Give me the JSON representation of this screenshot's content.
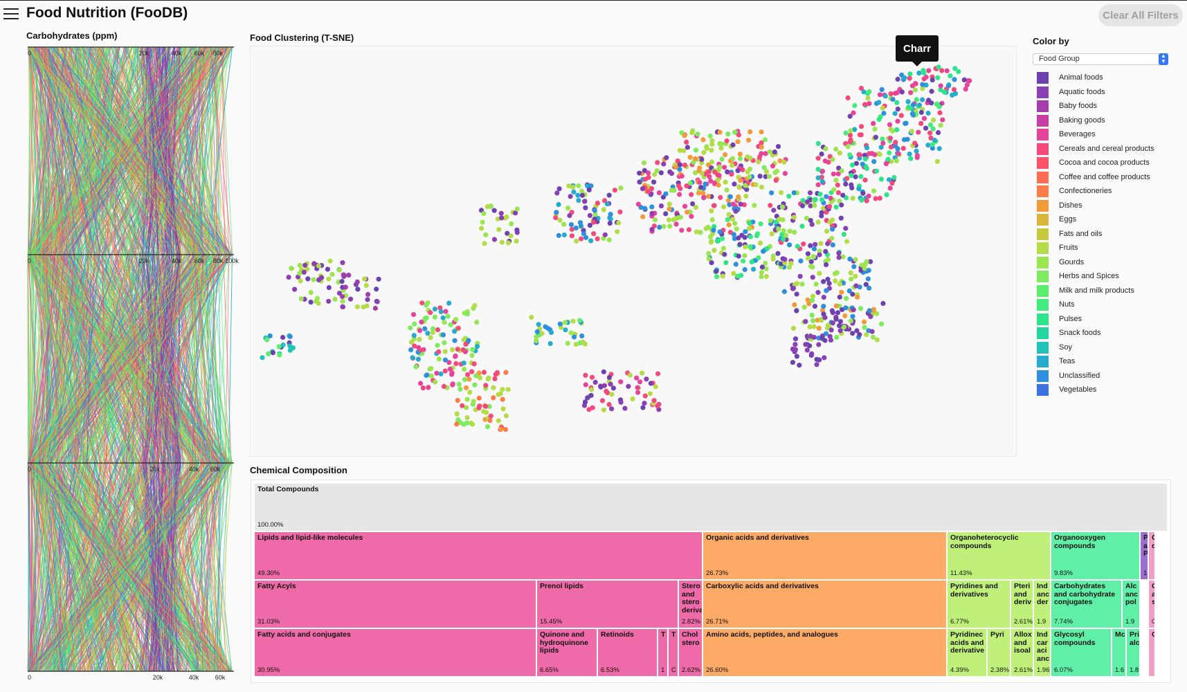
{
  "app": {
    "title": "Food Nutrition (FooDB)",
    "clear_label": "Clear All Filters"
  },
  "parallel": {
    "title": "Carbohydrates (ppm)",
    "axes": [
      {
        "ticks": [
          "0",
          "20k",
          "40k",
          "60k",
          "80k"
        ]
      },
      {
        "ticks": [
          "0",
          "20k",
          "40k",
          "60k",
          "80k",
          "100k"
        ]
      },
      {
        "ticks": [
          "0",
          "20k",
          "40k",
          "60k"
        ]
      },
      {
        "ticks": [
          "0",
          "20k",
          "40k",
          "60k"
        ]
      }
    ]
  },
  "tsne": {
    "title": "Food Clustering (T-SNE)",
    "tooltip": "Charr"
  },
  "colorby": {
    "label": "Color by",
    "selected": "Food Group",
    "groups": [
      {
        "name": "Animal foods",
        "color": "#6e41b1"
      },
      {
        "name": "Aquatic foods",
        "color": "#8a3fb2"
      },
      {
        "name": "Baby foods",
        "color": "#a63dac"
      },
      {
        "name": "Baking goods",
        "color": "#c73fa5"
      },
      {
        "name": "Beverages",
        "color": "#e6439a"
      },
      {
        "name": "Cereals and cereal products",
        "color": "#f4497b"
      },
      {
        "name": "Cocoa and cocoa products",
        "color": "#fb5269"
      },
      {
        "name": "Coffee and coffee products",
        "color": "#fd6b51"
      },
      {
        "name": "Confectioneries",
        "color": "#fd7c48"
      },
      {
        "name": "Dishes",
        "color": "#f39a3a"
      },
      {
        "name": "Eggs",
        "color": "#d8b53b"
      },
      {
        "name": "Fats and oils",
        "color": "#c6c83e"
      },
      {
        "name": "Fruits",
        "color": "#b3dc47"
      },
      {
        "name": "Gourds",
        "color": "#9be552"
      },
      {
        "name": "Herbs and Spices",
        "color": "#7ceb5f"
      },
      {
        "name": "Milk and milk products",
        "color": "#5cef6c"
      },
      {
        "name": "Nuts",
        "color": "#42ec7c"
      },
      {
        "name": "Pulses",
        "color": "#2de48a"
      },
      {
        "name": "Snack foods",
        "color": "#23d6a0"
      },
      {
        "name": "Soy",
        "color": "#23c2b9"
      },
      {
        "name": "Teas",
        "color": "#26aacd"
      },
      {
        "name": "Unclassified",
        "color": "#2f8fdc"
      },
      {
        "name": "Vegetables",
        "color": "#3d72e2"
      }
    ]
  },
  "treemap": {
    "title": "Chemical Composition",
    "total": {
      "name": "Total Compounds",
      "pct": "100.00%"
    },
    "level1": [
      {
        "name": "Lipids and lipid-like molecules",
        "pct": "49.30%",
        "color": "#ee6aa8"
      },
      {
        "name": "Organic acids and derivatives",
        "pct": "26.73%",
        "color": "#fdaa66"
      },
      {
        "name": "Organoheterocyclic compounds",
        "pct": "11.43%",
        "color": "#bff07a"
      },
      {
        "name": "Organooxygen compounds",
        "pct": "9.83%",
        "color": "#5fefa6"
      },
      {
        "name": "P a P",
        "pct": "1.",
        "color": "#9b6fd0"
      },
      {
        "name": "C c",
        "pct": "",
        "color": "#f3a0c6"
      }
    ],
    "level2": [
      {
        "name": "Fatty Acyls",
        "pct": "31.03%",
        "color": "#ee6aa8"
      },
      {
        "name": "Prenol lipids",
        "pct": "15.45%",
        "color": "#ee6aa8"
      },
      {
        "name": "Stero and stero deriva",
        "pct": "2.82%",
        "color": "#ee6aa8"
      },
      {
        "name": "Carboxylic acids and derivatives",
        "pct": "26.71%",
        "color": "#fdaa66"
      },
      {
        "name": "Pyridines and derivatives",
        "pct": "6.77%",
        "color": "#bff07a"
      },
      {
        "name": "Pteri and deriv",
        "pct": "2.61%",
        "color": "#bff07a"
      },
      {
        "name": "Ind anc der",
        "pct": "1.9",
        "color": "#bff07a"
      },
      {
        "name": "Carbohydrates and carbohydrate conjugates",
        "pct": "7.74%",
        "color": "#5fefa6"
      },
      {
        "name": "Alc anc pol",
        "pct": "1.9",
        "color": "#5fefa6"
      },
      {
        "name": "C a s",
        "pct": "0",
        "color": "#f3a0c6"
      }
    ],
    "level3": [
      {
        "name": "Fatty acids and conjugates",
        "pct": "30.95%",
        "color": "#ee6aa8"
      },
      {
        "name": "Quinone and hydroquinone lipids",
        "pct": "6.65%",
        "color": "#ee6aa8"
      },
      {
        "name": "Retinoids",
        "pct": "6.53%",
        "color": "#ee6aa8"
      },
      {
        "name": "T",
        "pct": "1",
        "color": "#ee6aa8"
      },
      {
        "name": "T",
        "pct": "C",
        "color": "#ee6aa8"
      },
      {
        "name": "Chol stero",
        "pct": "2.62%",
        "color": "#ee6aa8"
      },
      {
        "name": "Amino acids, peptides, and analogues",
        "pct": "26.60%",
        "color": "#fdaa66"
      },
      {
        "name": "Pyridinec acids and derivative",
        "pct": "4.39%",
        "color": "#bff07a"
      },
      {
        "name": "Pyri",
        "pct": "2.38%",
        "color": "#bff07a"
      },
      {
        "name": "Allox and isoal",
        "pct": "2.61%",
        "color": "#bff07a"
      },
      {
        "name": "Ind car aci anc",
        "pct": "1.96",
        "color": "#bff07a"
      },
      {
        "name": "Glycosyl compounds",
        "pct": "6.07%",
        "color": "#5fefa6"
      },
      {
        "name": "Mc",
        "pct": "1.6",
        "color": "#5fefa6"
      },
      {
        "name": "Pri alc",
        "pct": "1.8",
        "color": "#5fefa6"
      },
      {
        "name": "C",
        "pct": "",
        "color": "#f3a0c6"
      }
    ]
  }
}
